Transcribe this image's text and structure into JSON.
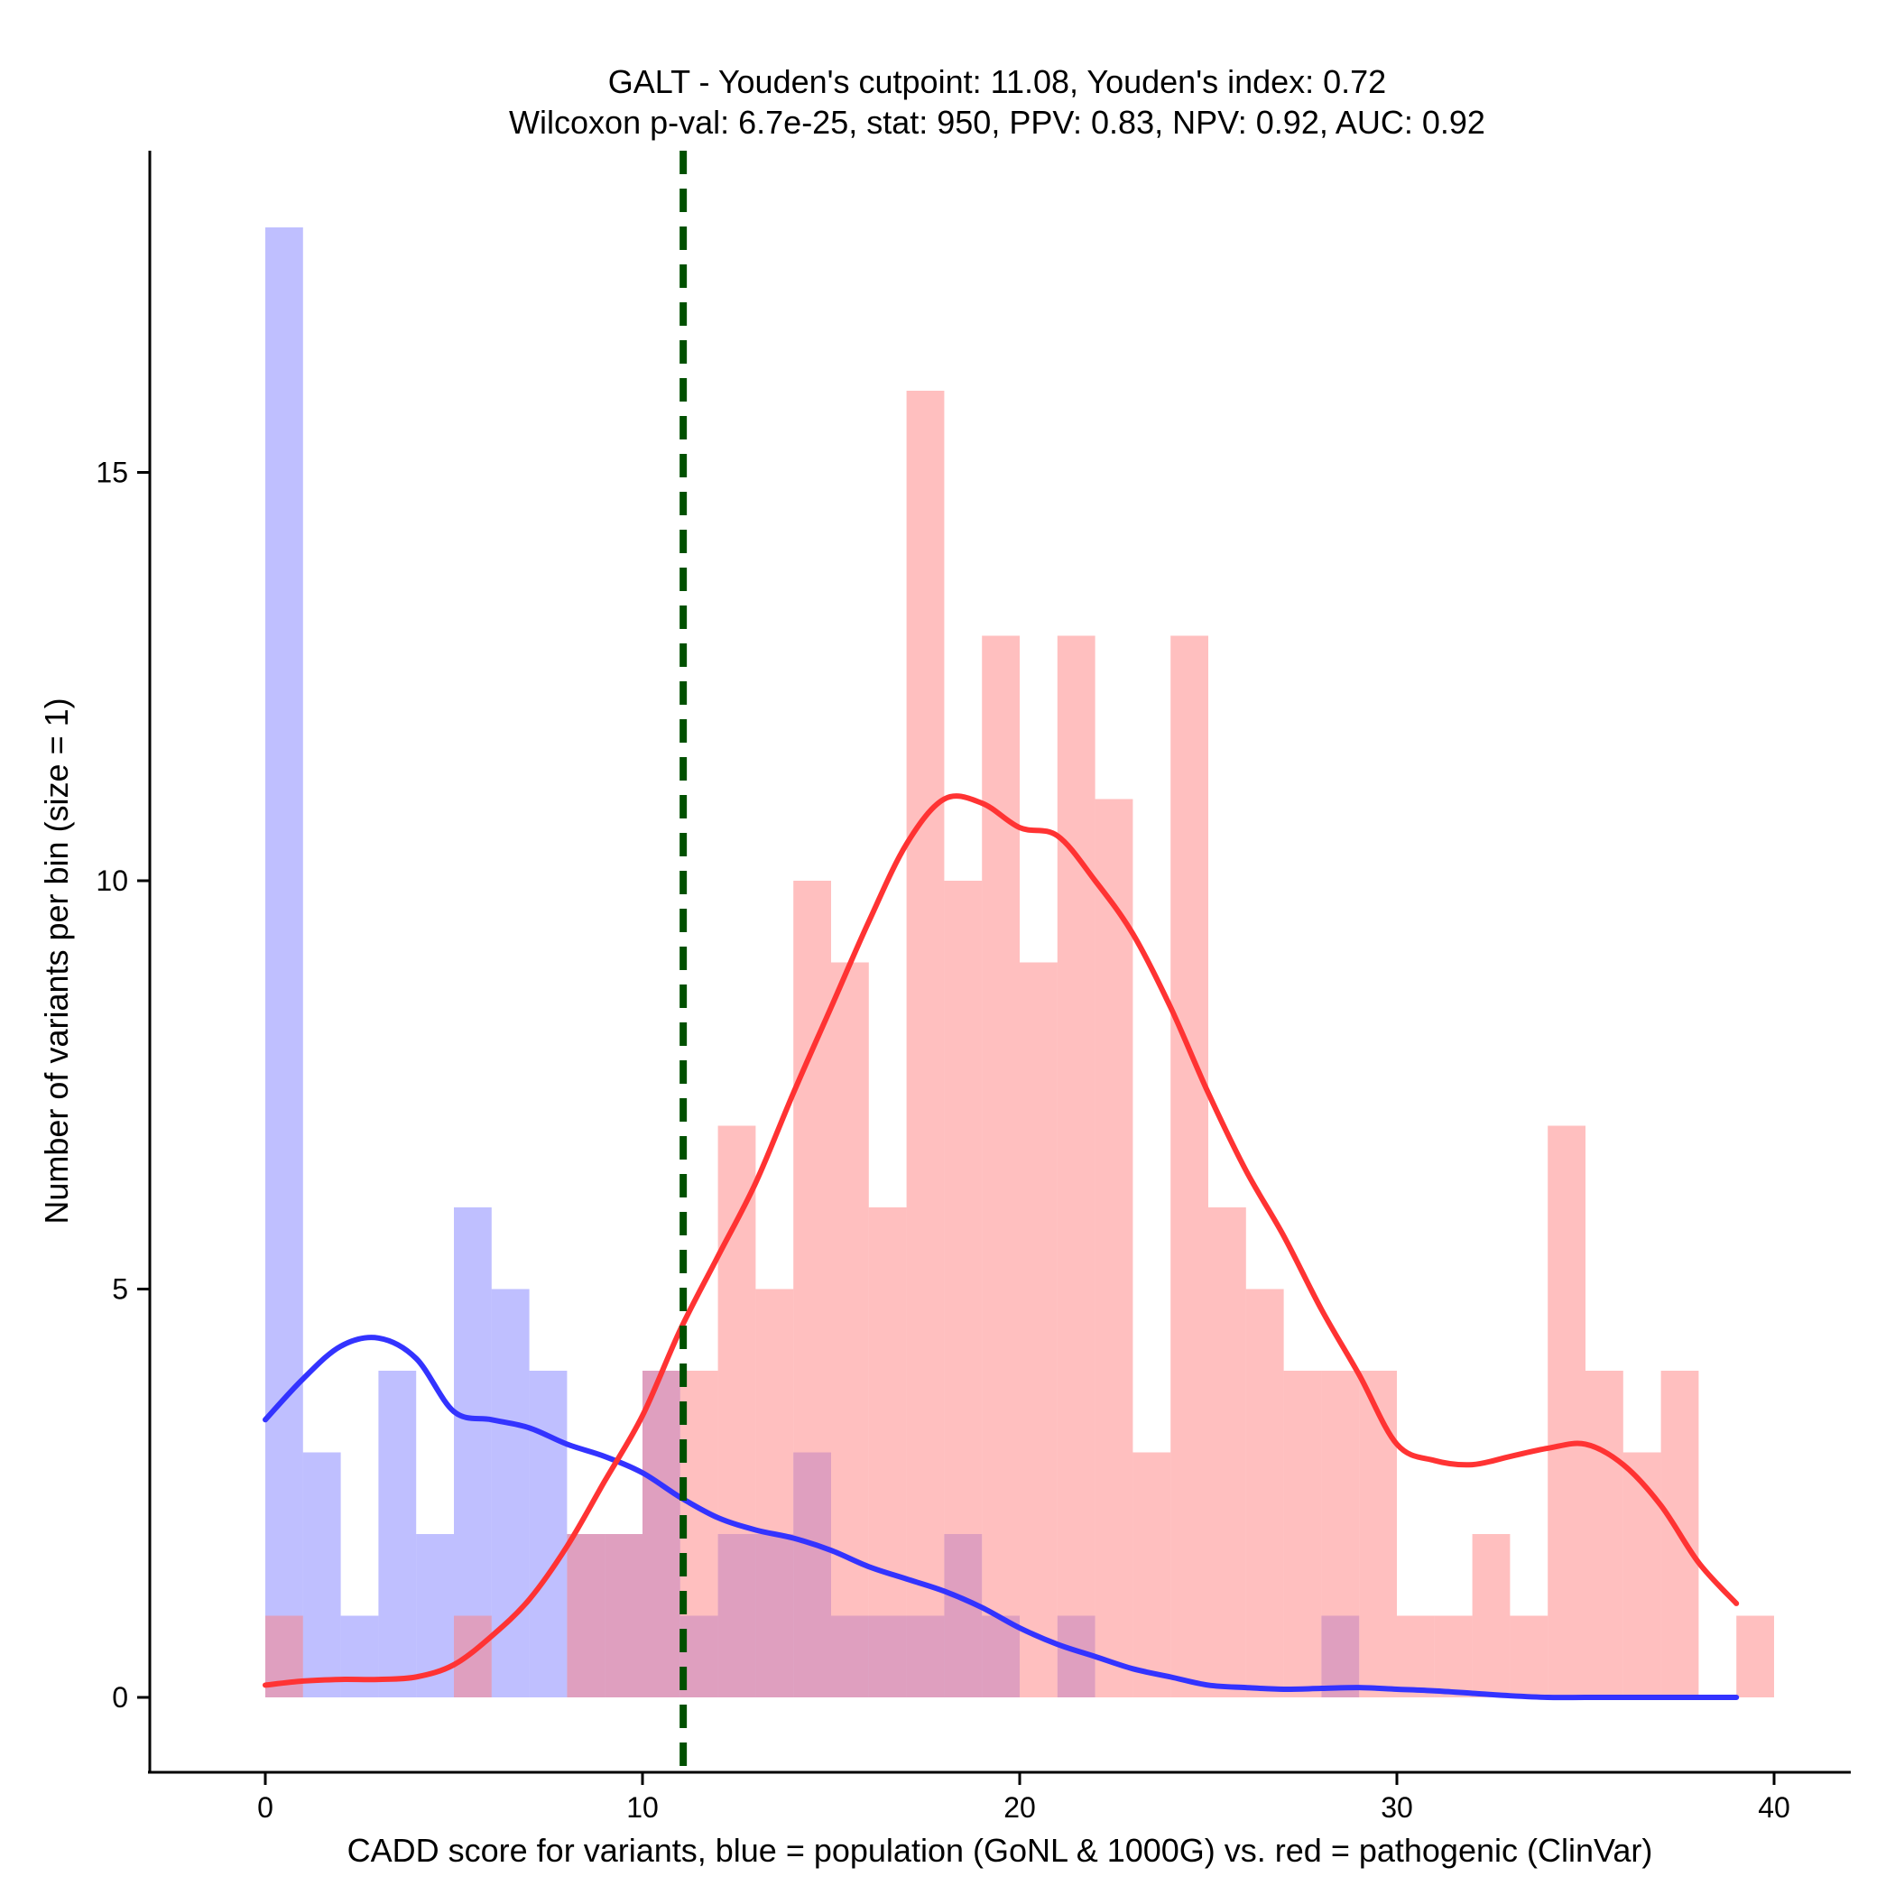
{
  "chart_data": {
    "type": "histogram",
    "title": "GALT - Youden's cutpoint: 11.08, Youden's index: 0.72",
    "subtitle": "Wilcoxon p-val: 6.7e-25, stat: 950, PPV: 0.83, NPV: 0.92, AUC: 0.92",
    "xlabel": "CADD score for variants, blue = population (GoNL & 1000G) vs. red = pathogenic (ClinVar)",
    "ylabel": "Number of variants per bin (size = 1)",
    "xlim": [
      -3,
      42
    ],
    "ylim": [
      -0.9,
      19
    ],
    "xticks": [
      0,
      10,
      20,
      30,
      40
    ],
    "yticks": [
      0,
      5,
      10,
      15
    ],
    "bin_size": 1,
    "colors": {
      "population": "#8080ff",
      "pathogenic": "#ff8080",
      "population_density": "#3333ff",
      "pathogenic_density": "#ff3333",
      "cutpoint": "#005000"
    },
    "cutpoint": 11.08,
    "series": [
      {
        "key": "population",
        "bins": [
          [
            0,
            18
          ],
          [
            1,
            3
          ],
          [
            2,
            1
          ],
          [
            3,
            4
          ],
          [
            4,
            2
          ],
          [
            5,
            6
          ],
          [
            6,
            5
          ],
          [
            7,
            4
          ],
          [
            8,
            2
          ],
          [
            9,
            2
          ],
          [
            10,
            4
          ],
          [
            11,
            1
          ],
          [
            12,
            2
          ],
          [
            13,
            2
          ],
          [
            14,
            3
          ],
          [
            15,
            1
          ],
          [
            16,
            1
          ],
          [
            17,
            1
          ],
          [
            18,
            2
          ],
          [
            19,
            1
          ],
          [
            21,
            1
          ],
          [
            28,
            1
          ]
        ]
      },
      {
        "key": "pathogenic",
        "bins": [
          [
            0,
            1
          ],
          [
            5,
            1
          ],
          [
            8,
            2
          ],
          [
            9,
            2
          ],
          [
            10,
            4
          ],
          [
            11,
            4
          ],
          [
            12,
            7
          ],
          [
            13,
            5
          ],
          [
            14,
            10
          ],
          [
            15,
            9
          ],
          [
            16,
            6
          ],
          [
            17,
            16
          ],
          [
            18,
            10
          ],
          [
            19,
            13
          ],
          [
            20,
            9
          ],
          [
            21,
            13
          ],
          [
            22,
            11
          ],
          [
            23,
            3
          ],
          [
            24,
            13
          ],
          [
            25,
            6
          ],
          [
            26,
            5
          ],
          [
            27,
            4
          ],
          [
            28,
            4
          ],
          [
            29,
            4
          ],
          [
            30,
            1
          ],
          [
            31,
            1
          ],
          [
            32,
            2
          ],
          [
            33,
            1
          ],
          [
            34,
            7
          ],
          [
            35,
            4
          ],
          [
            36,
            3
          ],
          [
            37,
            4
          ],
          [
            39,
            1
          ]
        ]
      }
    ],
    "density_curves": [
      {
        "key": "population_density",
        "points": [
          [
            0,
            3.4
          ],
          [
            1,
            3.9
          ],
          [
            2,
            4.3
          ],
          [
            3,
            4.4
          ],
          [
            4,
            4.15
          ],
          [
            5,
            3.5
          ],
          [
            6,
            3.4
          ],
          [
            7,
            3.3
          ],
          [
            8,
            3.1
          ],
          [
            9,
            2.95
          ],
          [
            10,
            2.75
          ],
          [
            11,
            2.45
          ],
          [
            12,
            2.2
          ],
          [
            13,
            2.05
          ],
          [
            14,
            1.95
          ],
          [
            15,
            1.8
          ],
          [
            16,
            1.6
          ],
          [
            17,
            1.45
          ],
          [
            18,
            1.3
          ],
          [
            19,
            1.1
          ],
          [
            20,
            0.85
          ],
          [
            21,
            0.65
          ],
          [
            22,
            0.5
          ],
          [
            23,
            0.35
          ],
          [
            24,
            0.25
          ],
          [
            25,
            0.15
          ],
          [
            26,
            0.12
          ],
          [
            27,
            0.1
          ],
          [
            28,
            0.11
          ],
          [
            29,
            0.12
          ],
          [
            30,
            0.1
          ],
          [
            31,
            0.08
          ],
          [
            32,
            0.05
          ],
          [
            33,
            0.02
          ],
          [
            34,
            0.0
          ],
          [
            35,
            0.0
          ],
          [
            36,
            0.0
          ],
          [
            37,
            0.0
          ],
          [
            38,
            0.0
          ],
          [
            39,
            0.0
          ]
        ]
      },
      {
        "key": "pathogenic_density",
        "points": [
          [
            0,
            0.15
          ],
          [
            1,
            0.2
          ],
          [
            2,
            0.22
          ],
          [
            3,
            0.22
          ],
          [
            4,
            0.25
          ],
          [
            5,
            0.4
          ],
          [
            6,
            0.75
          ],
          [
            7,
            1.2
          ],
          [
            8,
            1.85
          ],
          [
            9,
            2.65
          ],
          [
            10,
            3.45
          ],
          [
            11,
            4.5
          ],
          [
            12,
            5.4
          ],
          [
            13,
            6.3
          ],
          [
            14,
            7.4
          ],
          [
            15,
            8.45
          ],
          [
            16,
            9.5
          ],
          [
            17,
            10.45
          ],
          [
            18,
            11.0
          ],
          [
            19,
            10.95
          ],
          [
            20,
            10.65
          ],
          [
            21,
            10.55
          ],
          [
            22,
            10.0
          ],
          [
            23,
            9.35
          ],
          [
            24,
            8.45
          ],
          [
            25,
            7.4
          ],
          [
            26,
            6.45
          ],
          [
            27,
            5.65
          ],
          [
            28,
            4.75
          ],
          [
            29,
            3.95
          ],
          [
            30,
            3.1
          ],
          [
            31,
            2.9
          ],
          [
            32,
            2.85
          ],
          [
            33,
            2.95
          ],
          [
            34,
            3.05
          ],
          [
            35,
            3.1
          ],
          [
            36,
            2.85
          ],
          [
            37,
            2.35
          ],
          [
            38,
            1.65
          ],
          [
            39,
            1.15
          ]
        ]
      }
    ]
  }
}
